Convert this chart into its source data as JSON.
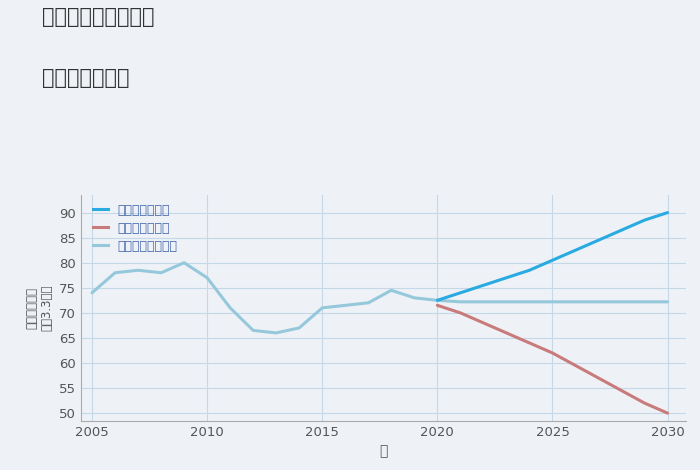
{
  "title_line1": "千葉県柏市五條谷の",
  "title_line2": "土地の価格推移",
  "xlabel": "年",
  "background_color": "#eef2f7",
  "plot_bg_color": "#eef2f7",
  "grid_color": "#c5d8e8",
  "xlim": [
    2004.5,
    2030.8
  ],
  "ylim": [
    48.5,
    93.5
  ],
  "xticks": [
    2005,
    2010,
    2015,
    2020,
    2025,
    2030
  ],
  "yticks": [
    50,
    55,
    60,
    65,
    70,
    75,
    80,
    85,
    90
  ],
  "normal_x": [
    2005,
    2006,
    2007,
    2008,
    2009,
    2010,
    2011,
    2012,
    2013,
    2014,
    2015,
    2016,
    2017,
    2018,
    2019,
    2020,
    2021,
    2022,
    2023,
    2024,
    2025,
    2026,
    2027,
    2028,
    2029,
    2030
  ],
  "normal_y": [
    74,
    78,
    78.5,
    78,
    80,
    77,
    71,
    66.5,
    66,
    67,
    71,
    71.5,
    72,
    74.5,
    73,
    72.5,
    72.2,
    72.2,
    72.2,
    72.2,
    72.2,
    72.2,
    72.2,
    72.2,
    72.2,
    72.2
  ],
  "good_x": [
    2020,
    2021,
    2022,
    2023,
    2024,
    2025,
    2026,
    2027,
    2028,
    2029,
    2030
  ],
  "good_y": [
    72.5,
    74,
    75.5,
    77,
    78.5,
    80.5,
    82.5,
    84.5,
    86.5,
    88.5,
    90
  ],
  "bad_x": [
    2020,
    2021,
    2022,
    2023,
    2024,
    2025,
    2026,
    2027,
    2028,
    2029,
    2030
  ],
  "bad_y": [
    71.5,
    70,
    68,
    66,
    64,
    62,
    59.5,
    57,
    54.5,
    52,
    50
  ],
  "color_good": "#29abe2",
  "color_bad": "#c97b7b",
  "color_normal": "#96c8dc",
  "legend_good": "グッドシナリオ",
  "legend_bad": "バッドシナリオ",
  "legend_normal": "ノーマルシナリオ",
  "linewidth": 2.2
}
